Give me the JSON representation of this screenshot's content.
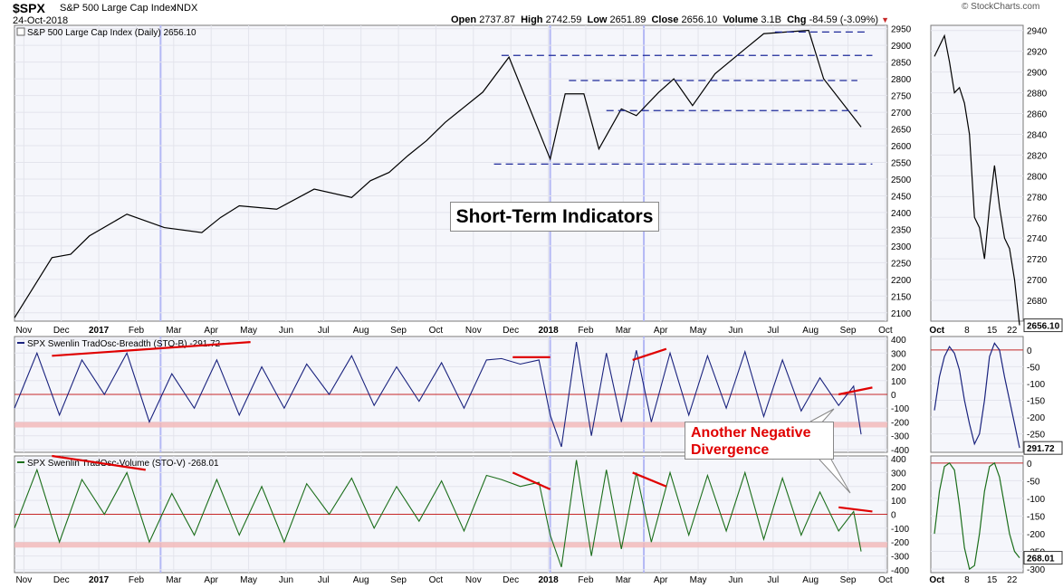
{
  "header": {
    "symbol": "$SPX",
    "name": "S&P 500 Large Cap Index",
    "exchange": "INDX",
    "date": "24-Oct-2018",
    "open_label": "Open",
    "open": "2737.87",
    "high_label": "High",
    "high": "2742.59",
    "low_label": "Low",
    "low": "2651.89",
    "close_label": "Close",
    "close": "2656.10",
    "volume_label": "Volume",
    "volume": "3.1B",
    "chg_label": "Chg",
    "chg": "-84.59 (-3.09%)",
    "brand": "© StockCharts.com"
  },
  "colors": {
    "price_line": "#000000",
    "breadth": "#1a237e",
    "volume_osc": "#1b6e1b",
    "dashed_levels": "#1e2a9a",
    "zero_line": "#c62828",
    "threshold_band": "#f3b6b6",
    "annotation_red": "#e00000",
    "vertical_marker": "#b3b8f5",
    "panel_bg": "#f5f6fb"
  },
  "annotations": {
    "title_box": "Short-Term Indicators",
    "callout_line1": "Another Negative",
    "callout_line2": "Divergence"
  },
  "chart_data": [
    {
      "type": "line",
      "title": "S&P 500 Large Cap Index (Daily) 2656.10",
      "x_ticks": [
        "Nov",
        "Dec",
        "2017",
        "Feb",
        "Mar",
        "Apr",
        "May",
        "Jun",
        "Jul",
        "Aug",
        "Sep",
        "Oct",
        "Nov",
        "Dec",
        "2018",
        "Feb",
        "Mar",
        "Apr",
        "May",
        "Jun",
        "Jul",
        "Aug",
        "Sep",
        "Oct"
      ],
      "y_ticks": [
        2100,
        2150,
        2200,
        2250,
        2300,
        2350,
        2400,
        2450,
        2500,
        2550,
        2600,
        2650,
        2700,
        2750,
        2800,
        2850,
        2900,
        2950
      ],
      "ylim": [
        2075,
        2960
      ],
      "x_month_index": [
        0,
        1,
        2,
        3,
        4,
        5,
        6,
        7,
        8,
        9,
        10,
        11,
        12,
        13,
        14,
        15,
        16,
        17,
        18,
        19,
        20,
        21,
        22,
        23,
        24
      ],
      "y": [
        2085,
        2175,
        2265,
        2275,
        2330,
        2395,
        2355,
        2340,
        2385,
        2420,
        2410,
        2470,
        2445,
        2495,
        2520,
        2570,
        2615,
        2670,
        2760,
        2865,
        2560,
        2755,
        2755,
        2590,
        2710,
        2690,
        2760,
        2800,
        2720,
        2815,
        2880,
        2935,
        2940,
        2945,
        2800,
        2656
      ],
      "x": [
        0,
        0.5,
        1,
        1.5,
        2,
        3,
        4,
        5,
        5.5,
        6,
        7,
        8,
        9,
        9.5,
        10,
        10.5,
        11,
        11.5,
        12.5,
        13.2,
        14.3,
        14.7,
        15.2,
        15.6,
        16.2,
        16.6,
        17.2,
        17.6,
        18.1,
        18.7,
        19.4,
        20,
        20.6,
        21.2,
        21.6,
        22.6
      ],
      "support_resistance": [
        {
          "level": 2870,
          "from": 13.0,
          "to": 22.9
        },
        {
          "level": 2940,
          "from": 20.3,
          "to": 22.8
        },
        {
          "level": 2795,
          "from": 14.8,
          "to": 22.5
        },
        {
          "level": 2705,
          "from": 15.8,
          "to": 22.5
        },
        {
          "level": 2545,
          "from": 12.8,
          "to": 22.9
        }
      ],
      "vertical_markers": [
        3.9,
        14.3,
        16.8
      ]
    },
    {
      "type": "line",
      "title": "SPX Swenlin TradOsc-Breadth (STO-B) -291.72",
      "y_ticks": [
        400,
        300,
        200,
        100,
        0,
        -100,
        -200,
        -300,
        -400
      ],
      "ylim": [
        -420,
        420
      ],
      "zero_line": 0,
      "threshold": -220,
      "x": [
        0,
        0.6,
        1.2,
        1.8,
        2.4,
        3.0,
        3.6,
        4.2,
        4.8,
        5.4,
        6.0,
        6.6,
        7.2,
        7.8,
        8.4,
        9.0,
        9.6,
        10.2,
        10.8,
        11.4,
        12.0,
        12.6,
        13.0,
        13.5,
        14.0,
        14.3,
        14.6,
        15.0,
        15.4,
        15.8,
        16.2,
        16.6,
        17.0,
        17.5,
        18.0,
        18.5,
        19.0,
        19.5,
        20.0,
        20.5,
        21.0,
        21.5,
        22.0,
        22.4,
        22.6
      ],
      "y": [
        -100,
        300,
        -150,
        250,
        0,
        300,
        -200,
        150,
        -100,
        250,
        -150,
        200,
        -100,
        220,
        0,
        280,
        -80,
        200,
        -50,
        230,
        -100,
        250,
        260,
        220,
        250,
        -150,
        -380,
        380,
        -300,
        300,
        -200,
        320,
        -200,
        300,
        -150,
        280,
        -100,
        310,
        -160,
        250,
        -120,
        120,
        -80,
        60,
        -290
      ],
      "divergence_lines": [
        {
          "x0": 1.0,
          "y0": 280,
          "x1": 6.3,
          "y1": 380
        },
        {
          "x0": 13.3,
          "y0": 270,
          "x1": 14.3,
          "y1": 270
        },
        {
          "x0": 16.5,
          "y0": 250,
          "x1": 17.4,
          "y1": 330
        },
        {
          "x0": 22.0,
          "y0": 0,
          "x1": 22.9,
          "y1": 50
        }
      ]
    },
    {
      "type": "line",
      "title": "SPX Swenlin TradOsc-Volume (STO-V) -268.01",
      "y_ticks": [
        400,
        300,
        200,
        100,
        0,
        -100,
        -200,
        -300,
        -400
      ],
      "ylim": [
        -420,
        420
      ],
      "zero_line": 0,
      "threshold": -220,
      "x": [
        0,
        0.6,
        1.2,
        1.8,
        2.4,
        3.0,
        3.6,
        4.2,
        4.8,
        5.4,
        6.0,
        6.6,
        7.2,
        7.8,
        8.4,
        9.0,
        9.6,
        10.2,
        10.8,
        11.4,
        12.0,
        12.6,
        13.0,
        13.5,
        14.0,
        14.3,
        14.6,
        15.0,
        15.4,
        15.8,
        16.2,
        16.6,
        17.0,
        17.5,
        18.0,
        18.5,
        19.0,
        19.5,
        20.0,
        20.5,
        21.0,
        21.5,
        22.0,
        22.4,
        22.6
      ],
      "y": [
        -100,
        320,
        -200,
        250,
        0,
        300,
        -200,
        150,
        -150,
        250,
        -150,
        200,
        -200,
        220,
        0,
        260,
        -100,
        200,
        -50,
        240,
        -120,
        280,
        250,
        200,
        230,
        -150,
        -380,
        390,
        -300,
        320,
        -250,
        300,
        -200,
        300,
        -150,
        280,
        -120,
        300,
        -180,
        260,
        -150,
        160,
        -120,
        20,
        -268
      ],
      "divergence_lines": [
        {
          "x0": 1.0,
          "y0": 420,
          "x1": 3.5,
          "y1": 320
        },
        {
          "x0": 13.3,
          "y0": 300,
          "x1": 14.3,
          "y1": 180
        },
        {
          "x0": 16.5,
          "y0": 300,
          "x1": 17.4,
          "y1": 200
        },
        {
          "x0": 22.0,
          "y0": 50,
          "x1": 22.9,
          "y1": 20
        }
      ]
    },
    {
      "type": "line",
      "title": "",
      "x_ticks": [
        "Oct",
        "8",
        "15",
        "22"
      ],
      "y_ticks": [
        2940,
        2920,
        2900,
        2880,
        2860,
        2840,
        2820,
        2800,
        2780,
        2760,
        2740,
        2720,
        2700,
        2680
      ],
      "ylim": [
        2660,
        2945
      ],
      "x": [
        0,
        1,
        2,
        3,
        4,
        5,
        6,
        7,
        8,
        9,
        10,
        11,
        12,
        13,
        14,
        15,
        16,
        17
      ],
      "y": [
        2915,
        2925,
        2935,
        2910,
        2880,
        2885,
        2870,
        2840,
        2760,
        2750,
        2720,
        2770,
        2810,
        2770,
        2740,
        2730,
        2700,
        2656
      ],
      "last_label": "2656.10"
    },
    {
      "type": "line",
      "title": "",
      "y_ticks": [
        0,
        -50,
        -100,
        -150,
        -200,
        -250
      ],
      "ylim": [
        -305,
        40
      ],
      "x": [
        0,
        1,
        2,
        3,
        4,
        5,
        6,
        7,
        8,
        9,
        10,
        11,
        12,
        13,
        14,
        15,
        16,
        17
      ],
      "y": [
        -180,
        -80,
        -20,
        10,
        -10,
        -60,
        -150,
        -220,
        -280,
        -250,
        -150,
        -20,
        20,
        0,
        -80,
        -150,
        -220,
        -292
      ],
      "zero_line": 0,
      "last_label": "291.72"
    },
    {
      "type": "line",
      "title": "",
      "x_ticks": [
        "Oct",
        "8",
        "15",
        "22"
      ],
      "y_ticks": [
        0,
        -50,
        -100,
        -150,
        -200,
        -250,
        -300
      ],
      "ylim": [
        -310,
        20
      ],
      "x": [
        0,
        1,
        2,
        3,
        4,
        5,
        6,
        7,
        8,
        9,
        10,
        11,
        12,
        13,
        14,
        15,
        16,
        17
      ],
      "y": [
        -200,
        -80,
        -10,
        0,
        -20,
        -120,
        -240,
        -300,
        -290,
        -200,
        -80,
        -10,
        0,
        -40,
        -120,
        -200,
        -250,
        -268
      ],
      "zero_line": 0,
      "last_label": "268.01"
    }
  ]
}
